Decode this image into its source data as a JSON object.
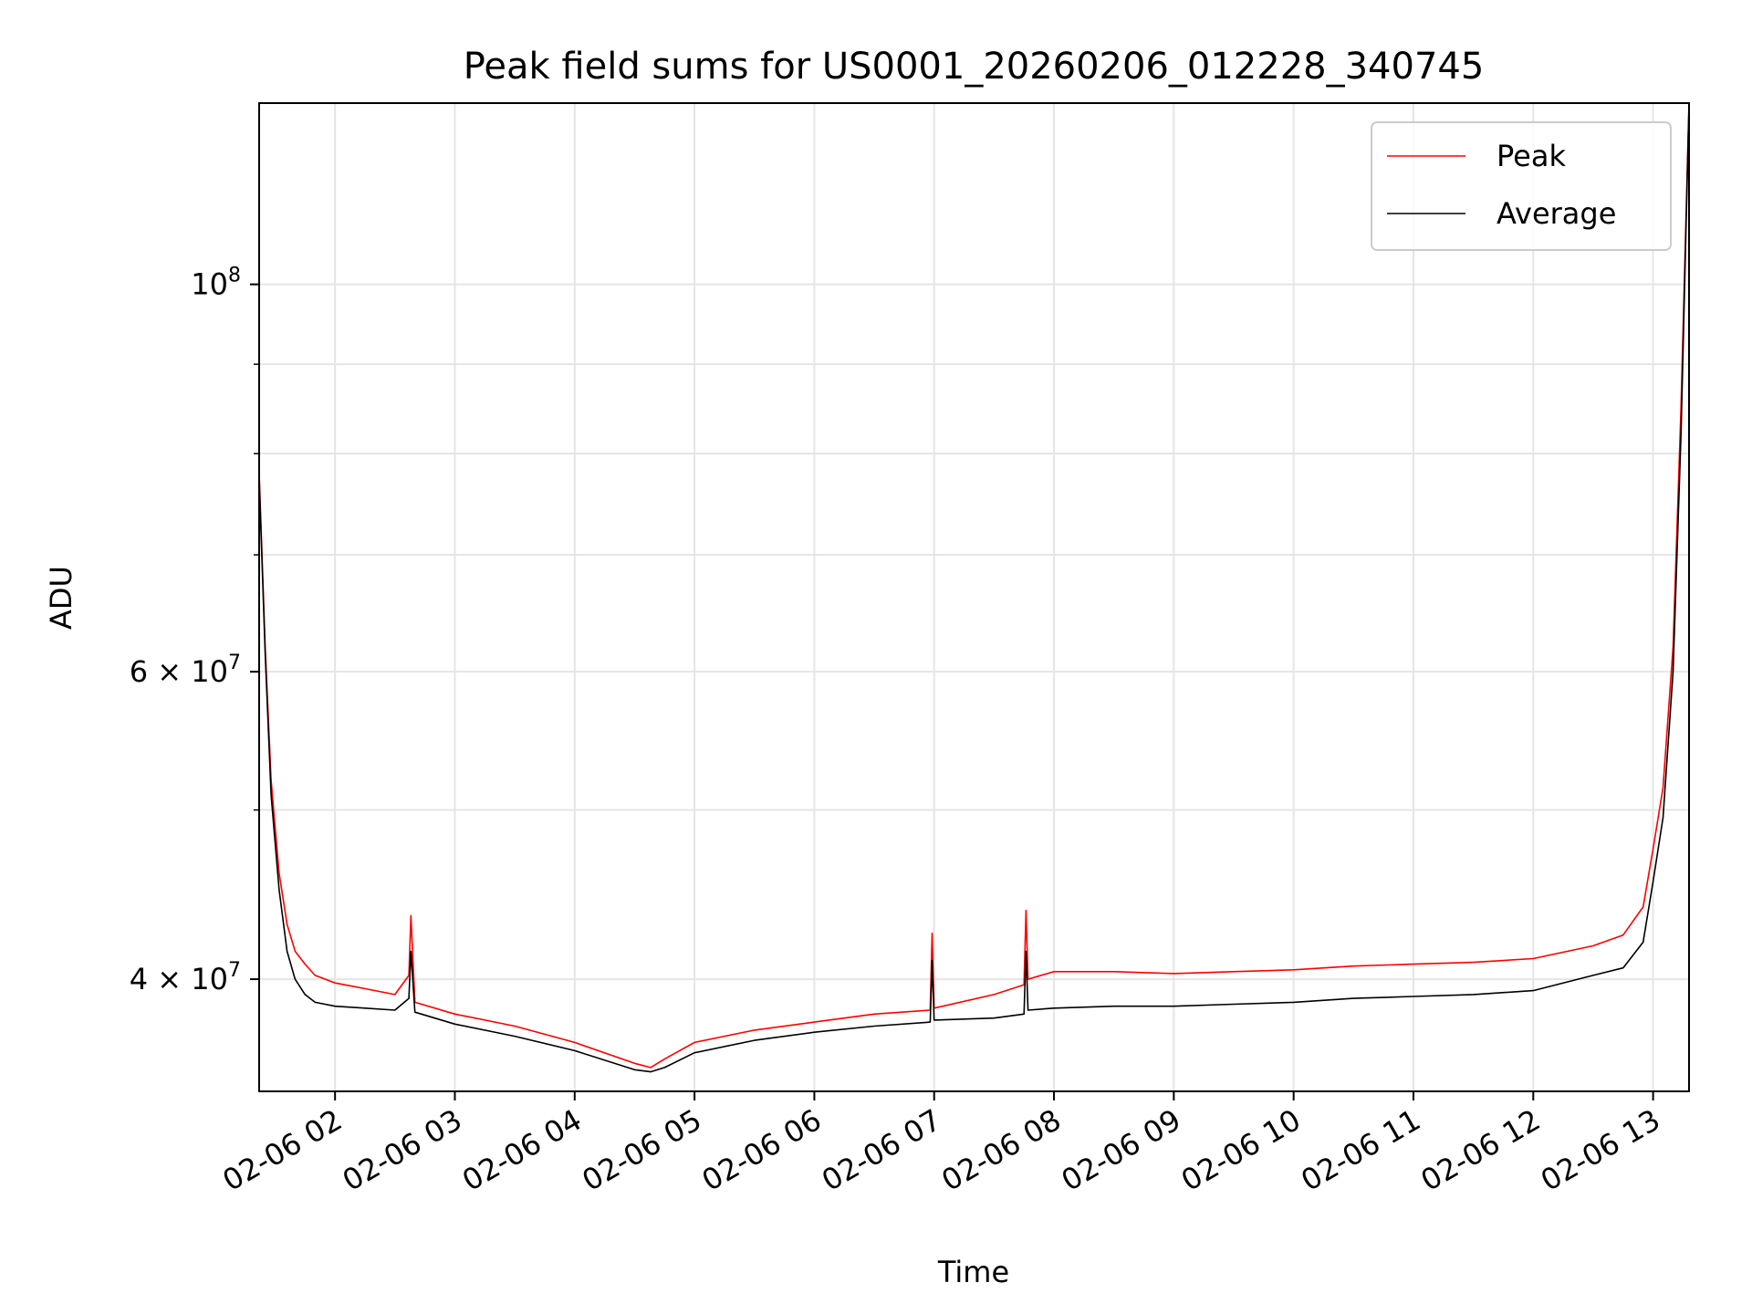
{
  "chart_data": {
    "type": "line",
    "title": "Peak field sums for US0001_20260206_012228_340745",
    "xlabel": "Time",
    "ylabel": "ADU",
    "y_scale": "log",
    "ylim": [
      34500000,
      127000000
    ],
    "xlim": [
      "2026-02-06 01:22",
      "2026-02-06 13:18"
    ],
    "grid": true,
    "legend_position": "top-right",
    "x_ticks": [
      "02-06 02",
      "02-06 03",
      "02-06 04",
      "02-06 05",
      "02-06 06",
      "02-06 07",
      "02-06 08",
      "02-06 09",
      "02-06 10",
      "02-06 11",
      "02-06 12",
      "02-06 13"
    ],
    "y_ticks": [
      {
        "value": 100000000,
        "label": "10",
        "exp": "8"
      },
      {
        "value": 60000000,
        "label": "6 × 10",
        "exp": "7"
      },
      {
        "value": 40000000,
        "label": "4 × 10",
        "exp": "7"
      }
    ],
    "y_minor_ticks": [
      50000000,
      70000000,
      80000000,
      90000000
    ],
    "series": [
      {
        "name": "Peak",
        "color": "#ff0000",
        "x": [
          "2026-02-06 01:22",
          "2026-02-06 01:25",
          "2026-02-06 01:28",
          "2026-02-06 01:32",
          "2026-02-06 01:36",
          "2026-02-06 01:40",
          "2026-02-06 01:45",
          "2026-02-06 01:50",
          "2026-02-06 02:00",
          "2026-02-06 02:15",
          "2026-02-06 02:30",
          "2026-02-06 02:37",
          "2026-02-06 02:38",
          "2026-02-06 02:40",
          "2026-02-06 03:00",
          "2026-02-06 03:30",
          "2026-02-06 04:00",
          "2026-02-06 04:30",
          "2026-02-06 04:38",
          "2026-02-06 04:45",
          "2026-02-06 05:00",
          "2026-02-06 05:30",
          "2026-02-06 06:00",
          "2026-02-06 06:30",
          "2026-02-06 06:58",
          "2026-02-06 06:59",
          "2026-02-06 07:00",
          "2026-02-06 07:30",
          "2026-02-06 07:45",
          "2026-02-06 07:46",
          "2026-02-06 07:47",
          "2026-02-06 08:00",
          "2026-02-06 08:30",
          "2026-02-06 09:00",
          "2026-02-06 09:30",
          "2026-02-06 10:00",
          "2026-02-06 10:30",
          "2026-02-06 11:00",
          "2026-02-06 11:30",
          "2026-02-06 12:00",
          "2026-02-06 12:30",
          "2026-02-06 12:45",
          "2026-02-06 12:55",
          "2026-02-06 13:00",
          "2026-02-06 13:05",
          "2026-02-06 13:10",
          "2026-02-06 13:14",
          "2026-02-06 13:18"
        ],
        "y": [
          78000000,
          62000000,
          52000000,
          46000000,
          43000000,
          41500000,
          40800000,
          40200000,
          39800000,
          39500000,
          39200000,
          40200000,
          43500000,
          38800000,
          38200000,
          37600000,
          36800000,
          35800000,
          35600000,
          36000000,
          36800000,
          37400000,
          37800000,
          38200000,
          38400000,
          42500000,
          38500000,
          39200000,
          39700000,
          43800000,
          40000000,
          40400000,
          40400000,
          40300000,
          40400000,
          40500000,
          40700000,
          40800000,
          40900000,
          41100000,
          41800000,
          42400000,
          44000000,
          47500000,
          51500000,
          62000000,
          85000000,
          127000000
        ]
      },
      {
        "name": "Average",
        "color": "#000000",
        "x": [
          "2026-02-06 01:22",
          "2026-02-06 01:25",
          "2026-02-06 01:28",
          "2026-02-06 01:32",
          "2026-02-06 01:36",
          "2026-02-06 01:40",
          "2026-02-06 01:45",
          "2026-02-06 01:50",
          "2026-02-06 02:00",
          "2026-02-06 02:15",
          "2026-02-06 02:30",
          "2026-02-06 02:37",
          "2026-02-06 02:38",
          "2026-02-06 02:40",
          "2026-02-06 03:00",
          "2026-02-06 03:30",
          "2026-02-06 04:00",
          "2026-02-06 04:30",
          "2026-02-06 04:38",
          "2026-02-06 04:45",
          "2026-02-06 05:00",
          "2026-02-06 05:30",
          "2026-02-06 06:00",
          "2026-02-06 06:30",
          "2026-02-06 06:58",
          "2026-02-06 06:59",
          "2026-02-06 07:00",
          "2026-02-06 07:30",
          "2026-02-06 07:45",
          "2026-02-06 07:46",
          "2026-02-06 07:47",
          "2026-02-06 08:00",
          "2026-02-06 08:30",
          "2026-02-06 09:00",
          "2026-02-06 09:30",
          "2026-02-06 10:00",
          "2026-02-06 10:30",
          "2026-02-06 11:00",
          "2026-02-06 11:30",
          "2026-02-06 12:00",
          "2026-02-06 12:30",
          "2026-02-06 12:45",
          "2026-02-06 12:55",
          "2026-02-06 13:00",
          "2026-02-06 13:05",
          "2026-02-06 13:10",
          "2026-02-06 13:14",
          "2026-02-06 13:18"
        ],
        "y": [
          77500000,
          61500000,
          51000000,
          45000000,
          41500000,
          40000000,
          39200000,
          38800000,
          38600000,
          38500000,
          38400000,
          39000000,
          41500000,
          38300000,
          37700000,
          37100000,
          36400000,
          35500000,
          35400000,
          35600000,
          36300000,
          36900000,
          37300000,
          37600000,
          37800000,
          41000000,
          37900000,
          38000000,
          38200000,
          41500000,
          38400000,
          38500000,
          38600000,
          38600000,
          38700000,
          38800000,
          39000000,
          39100000,
          39200000,
          39400000,
          40200000,
          40600000,
          42000000,
          45500000,
          49500000,
          60000000,
          82000000,
          127000000
        ]
      }
    ]
  }
}
